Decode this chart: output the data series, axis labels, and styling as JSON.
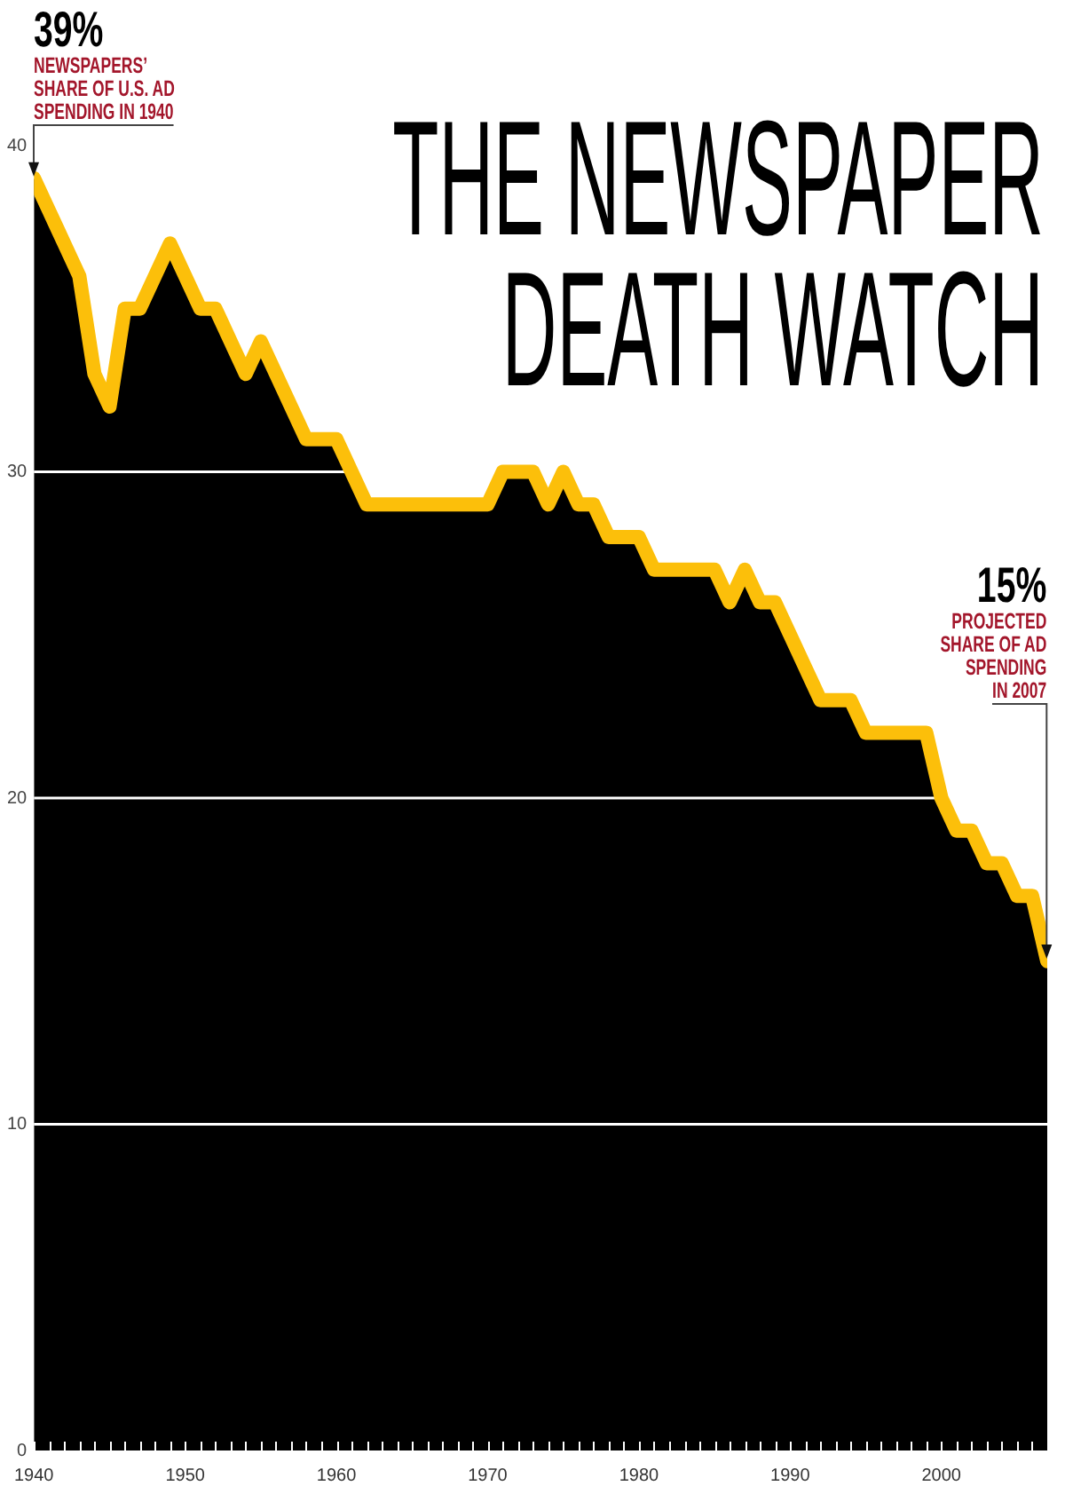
{
  "chart_data": {
    "type": "area",
    "title": "THE NEWSPAPER DEATH WATCH",
    "x": [
      1940,
      1941,
      1942,
      1943,
      1944,
      1945,
      1946,
      1947,
      1948,
      1949,
      1950,
      1951,
      1952,
      1953,
      1954,
      1955,
      1956,
      1957,
      1958,
      1959,
      1960,
      1961,
      1962,
      1963,
      1964,
      1965,
      1966,
      1967,
      1968,
      1969,
      1970,
      1971,
      1972,
      1973,
      1974,
      1975,
      1976,
      1977,
      1978,
      1979,
      1980,
      1981,
      1982,
      1983,
      1984,
      1985,
      1986,
      1987,
      1988,
      1989,
      1990,
      1991,
      1992,
      1993,
      1994,
      1995,
      1996,
      1997,
      1998,
      1999,
      2000,
      2001,
      2002,
      2003,
      2004,
      2005,
      2006,
      2007
    ],
    "values": [
      39,
      38,
      37,
      36,
      33,
      32,
      35,
      35,
      36,
      37,
      36,
      35,
      35,
      34,
      33,
      34,
      33,
      32,
      31,
      31,
      31,
      30,
      29,
      29,
      29,
      29,
      29,
      29,
      29,
      29,
      29,
      30,
      30,
      30,
      29,
      30,
      29,
      29,
      28,
      28,
      28,
      27,
      27,
      27,
      27,
      27,
      26,
      27,
      26,
      26,
      25,
      24,
      23,
      23,
      23,
      22,
      22,
      22,
      22,
      22,
      20,
      19,
      19,
      18,
      18,
      17,
      17,
      15
    ],
    "color": "#fcbf0a",
    "xlim": [
      1940,
      2007
    ],
    "xticks": [
      1940,
      {
        "value": 1941,
        "label": null
      },
      {
        "value": 1942,
        "label": null
      },
      {
        "value": 1943,
        "label": null
      },
      {
        "value": 1944,
        "label": null
      },
      {
        "value": 1945,
        "label": null
      },
      {
        "value": 1946,
        "label": null
      },
      {
        "value": 1947,
        "label": null
      },
      {
        "value": 1948,
        "label": null
      },
      {
        "value": 1949,
        "label": null
      },
      1950,
      {
        "value": 1951,
        "label": null
      },
      {
        "value": 1952,
        "label": null
      },
      {
        "value": 1953,
        "label": null
      },
      {
        "value": 1954,
        "label": null
      },
      {
        "value": 1955,
        "label": null
      },
      {
        "value": 1956,
        "label": null
      },
      {
        "value": 1957,
        "label": null
      },
      {
        "value": 1958,
        "label": null
      },
      {
        "value": 1959,
        "label": null
      },
      1960,
      {
        "value": 1961,
        "label": null
      },
      {
        "value": 1962,
        "label": null
      },
      {
        "value": 1963,
        "label": null
      },
      {
        "value": 1964,
        "label": null
      },
      {
        "value": 1965,
        "label": null
      },
      {
        "value": 1966,
        "label": null
      },
      {
        "value": 1967,
        "label": null
      },
      {
        "value": 1968,
        "label": null
      },
      {
        "value": 1969,
        "label": null
      },
      1970,
      {
        "value": 1971,
        "label": null
      },
      {
        "value": 1972,
        "label": null
      },
      {
        "value": 1973,
        "label": null
      },
      {
        "value": 1974,
        "label": null
      },
      {
        "value": 1975,
        "label": null
      },
      {
        "value": 1976,
        "label": null
      },
      {
        "value": 1977,
        "label": null
      },
      {
        "value": 1978,
        "label": null
      },
      {
        "value": 1979,
        "label": null
      },
      1980,
      {
        "value": 1981,
        "label": null
      },
      {
        "value": 1982,
        "label": null
      },
      {
        "value": 1983,
        "label": null
      },
      {
        "value": 1984,
        "label": null
      },
      {
        "value": 1985,
        "label": null
      },
      {
        "value": 1986,
        "label": null
      },
      {
        "value": 1987,
        "label": null
      },
      {
        "value": 1988,
        "label": null
      },
      {
        "value": 1989,
        "label": null
      },
      1990,
      {
        "value": 1991,
        "label": null
      },
      {
        "value": 1992,
        "label": null
      },
      {
        "value": 1993,
        "label": null
      },
      {
        "value": 1994,
        "label": null
      },
      {
        "value": 1995,
        "label": null
      },
      {
        "value": 1996,
        "label": null
      },
      {
        "value": 1997,
        "label": null
      },
      {
        "value": 1998,
        "label": null
      },
      {
        "value": 1999,
        "label": null
      },
      2000,
      {
        "value": 2001,
        "label": null
      },
      {
        "value": 2002,
        "label": null
      },
      {
        "value": 2003,
        "label": null
      },
      {
        "value": 2004,
        "label": null
      },
      {
        "value": 2005,
        "label": null
      },
      {
        "value": 2006,
        "label": null
      }
    ],
    "ylim": [
      0,
      40
    ],
    "yticks": [
      0,
      10,
      20,
      30,
      40
    ],
    "grid": "y",
    "annotations": [
      {
        "text": "39%\nNEWSPAPERS’\nSHARE OF U.S. AD\nSPENDING IN 1940",
        "x": 1940,
        "y": 39
      },
      {
        "text": "15%\nPROJECTED\nSHARE OF AD\nSPENDING\nIN 2007",
        "x": 2007,
        "y": 15
      }
    ]
  }
}
